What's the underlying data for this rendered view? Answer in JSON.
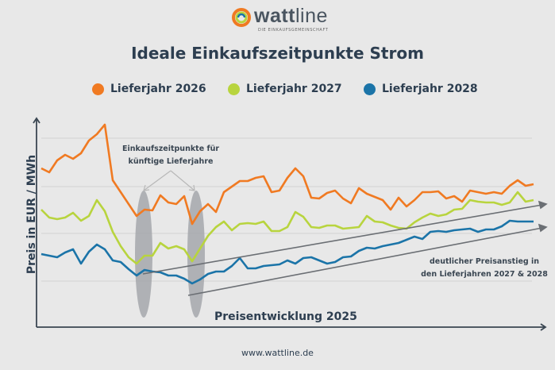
{
  "brand": {
    "name_bold": "watt",
    "name_light": "line",
    "tagline": "DIE EINKAUFSGEMEINSCHAFT"
  },
  "footer": {
    "url": "www.wattline.de"
  },
  "colors": {
    "orange": "#f07a22",
    "green": "#b8d43e",
    "blue": "#1b74a8",
    "text": "#2d3e50",
    "background": "#e8e8e8",
    "highlight": "#a4a7ab"
  },
  "chart_data": {
    "type": "line",
    "title": "Ideale Einkaufszeitpunkte Strom",
    "xlabel": "Preisentwicklung 2025",
    "ylabel": "Preis in EUR / MWh",
    "grid": true,
    "legend": "top",
    "axis_ticks": false,
    "ylim": [
      8,
      270
    ],
    "series": [
      {
        "name": "Lieferjahr 2026",
        "color": "#f07a22",
        "values": [
          200,
          195,
          210,
          217,
          212,
          219,
          235,
          243,
          255,
          185,
          170,
          155,
          140,
          148,
          147,
          166,
          157,
          155,
          165,
          130,
          146,
          155,
          145,
          170,
          177,
          184,
          184,
          188,
          190,
          170,
          172,
          188,
          200,
          190,
          163,
          162,
          169,
          172,
          162,
          156,
          175,
          168,
          164,
          160,
          148,
          163,
          152,
          160,
          170,
          170,
          171,
          162,
          165,
          158,
          172,
          170,
          168,
          170,
          168,
          178,
          185,
          178,
          180
        ]
      },
      {
        "name": "Lieferjahr 2027",
        "color": "#b8d43e",
        "values": [
          148,
          138,
          136,
          138,
          144,
          134,
          140,
          160,
          146,
          120,
          102,
          88,
          80,
          90,
          90,
          106,
          99,
          102,
          98,
          83,
          99,
          115,
          126,
          133,
          122,
          130,
          131,
          130,
          133,
          121,
          121,
          126,
          145,
          139,
          126,
          125,
          128,
          128,
          124,
          125,
          126,
          140,
          133,
          132,
          128,
          125,
          124,
          132,
          138,
          143,
          140,
          142,
          148,
          149,
          160,
          158,
          157,
          157,
          154,
          157,
          170,
          158,
          160
        ]
      },
      {
        "name": "Lieferjahr 2028",
        "color": "#1b74a8",
        "values": [
          92,
          90,
          88,
          94,
          98,
          80,
          95,
          104,
          98,
          84,
          82,
          73,
          65,
          72,
          70,
          69,
          65,
          65,
          61,
          55,
          60,
          67,
          70,
          70,
          77,
          87,
          74,
          74,
          77,
          78,
          79,
          84,
          80,
          87,
          88,
          84,
          80,
          82,
          88,
          89,
          96,
          100,
          99,
          102,
          104,
          106,
          110,
          114,
          111,
          120,
          121,
          120,
          122,
          123,
          124,
          120,
          123,
          123,
          127,
          134,
          133,
          133,
          133
        ]
      }
    ],
    "annotations": {
      "buy_points": "Einkaufszeitpunkte für künftige Lieferjahre",
      "buy_points_line2": "künftige Lieferjahre",
      "buy_points_line1": "Einkaufszeitpunkte für",
      "trend_line1": "deutlicher Preisanstieg in",
      "trend_line2": "den Lieferjahren 2027 & 2028"
    }
  }
}
